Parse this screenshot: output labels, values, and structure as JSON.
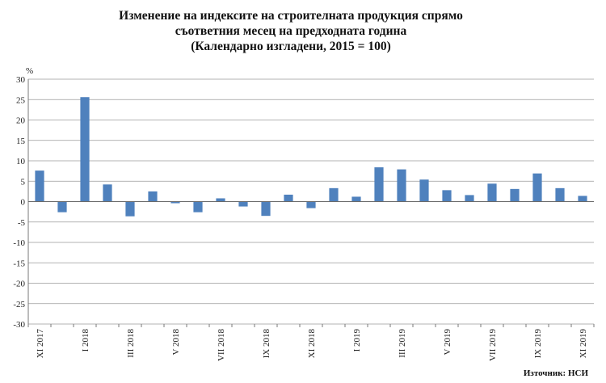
{
  "title_lines": [
    "Изменение на индексите на строителната продукция спрямо",
    "съответния месец на предходната година",
    "(Календарно изгладени, 2015 = 100)"
  ],
  "source": "Източник: НСИ",
  "chart_data": {
    "type": "bar",
    "title": "Изменение на индексите на строителната продукция спрямо съответния месец на предходната година (Календарно изгладени, 2015 = 100)",
    "ylabel": "%",
    "ylim": [
      -30,
      30
    ],
    "yticks": [
      30,
      25,
      20,
      15,
      10,
      5,
      0,
      -5,
      -10,
      -15,
      -20,
      -25,
      -30
    ],
    "grid": true,
    "bar_color": "#4f81bd",
    "categories": [
      "XI 2017",
      "XII 2017",
      "I 2018",
      "II 2018",
      "III 2018",
      "IV 2018",
      "V 2018",
      "VI 2018",
      "VII 2018",
      "VIII 2018",
      "IX 2018",
      "X 2018",
      "XI 2018",
      "XII 2018",
      "I 2019",
      "II 2019",
      "III 2019",
      "IV 2019",
      "V 2019",
      "VI 2019",
      "VII 2019",
      "VIII 2019",
      "IX 2019",
      "X 2019",
      "XI 2019"
    ],
    "tick_labels": [
      "XI 2017",
      "",
      "I 2018",
      "",
      "III 2018",
      "",
      "V 2018",
      "",
      "VII 2018",
      "",
      "IX 2018",
      "",
      "XI 2018",
      "",
      "I 2019",
      "",
      "III 2019",
      "",
      "V 2019",
      "",
      "VII 2019",
      "",
      "IX 2019",
      "",
      "XI 2019"
    ],
    "values": [
      7.6,
      -2.6,
      25.6,
      4.2,
      -3.6,
      2.5,
      -0.4,
      -2.6,
      0.8,
      -1.2,
      -3.5,
      1.7,
      -1.6,
      3.3,
      1.2,
      8.4,
      7.9,
      5.4,
      2.8,
      1.6,
      4.4,
      3.1,
      6.9,
      3.3,
      1.4
    ]
  }
}
